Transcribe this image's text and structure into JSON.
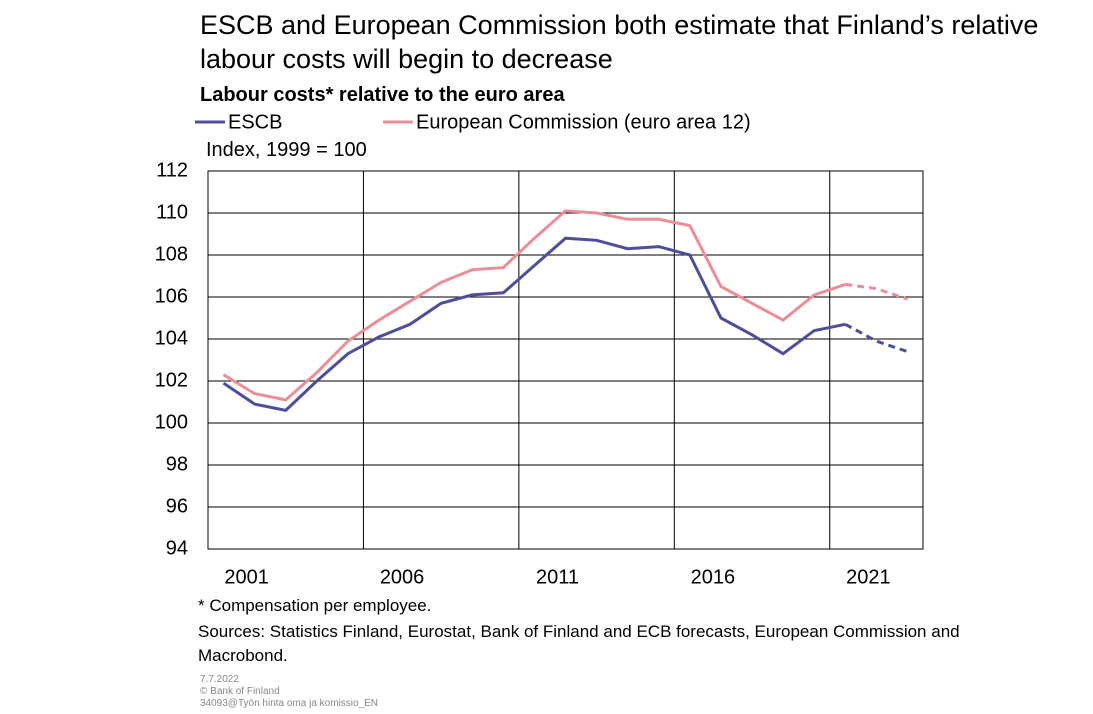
{
  "chart_data": {
    "type": "line",
    "title": "ESCB and European Commission both estimate that Finland’s relative labour costs will begin to decrease",
    "subtitle": "Labour costs* relative to the euro area",
    "y_label": "Index, 1999 = 100",
    "footnote": "* Compensation per employee.",
    "sources": "Sources: Statistics Finland, Eurostat, Bank of Finland and ECB forecasts, European Commission and Macrobond.",
    "notes": [
      "7.7.2022",
      "© Bank of Finland",
      "34093@Työn hinta oma ja komissio_EN"
    ],
    "categories": [
      null,
      "2001",
      null,
      null,
      null,
      null,
      "2006",
      null,
      null,
      null,
      null,
      "2011",
      null,
      null,
      null,
      null,
      "2016",
      null,
      null,
      null,
      null,
      "2021",
      null
    ],
    "series": [
      {
        "name": "ESCB",
        "color": "#4b4f9c",
        "values": [
          101.9,
          100.9,
          100.6,
          102.0,
          103.3,
          104.1,
          104.7,
          105.7,
          106.1,
          106.2,
          107.5,
          108.8,
          108.7,
          108.3,
          108.4,
          108.0,
          105.0,
          104.2,
          103.3,
          104.4,
          104.7,
          103.9,
          103.4
        ]
      },
      {
        "name": "European Commission (euro area 12)",
        "color": "#ec8e97",
        "values": [
          102.3,
          101.4,
          101.1,
          102.4,
          103.9,
          104.9,
          105.8,
          106.7,
          107.3,
          107.4,
          108.8,
          110.1,
          110.0,
          109.7,
          109.7,
          109.4,
          106.5,
          105.7,
          104.9,
          106.1,
          106.6,
          106.4,
          105.9
        ]
      }
    ],
    "dash_start_index": 20,
    "ylim": [
      94,
      112
    ],
    "yticks": [
      94,
      96,
      98,
      100,
      102,
      104,
      106,
      108,
      110,
      112
    ],
    "grid": true
  }
}
